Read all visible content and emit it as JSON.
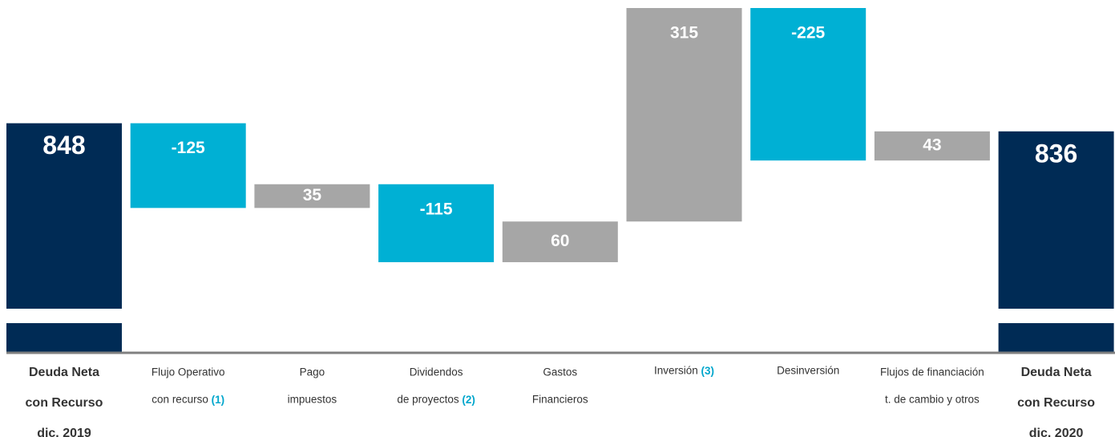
{
  "chart_data": {
    "type": "waterfall",
    "categories": [
      [
        "Deuda Neta",
        "con Recurso",
        "dic. 2019"
      ],
      [
        "Flujo Operativo",
        "con recurso"
      ],
      [
        "Pago",
        "impuestos"
      ],
      [
        "Dividendos",
        "de proyectos"
      ],
      [
        "Gastos",
        "Financieros"
      ],
      [
        "Inversión"
      ],
      [
        "Desinversión"
      ],
      [
        "Flujos de financiación",
        "t. de cambio y otros"
      ],
      [
        "Deuda Neta",
        "con Recurso",
        "dic. 2020"
      ]
    ],
    "footnotes": [
      null,
      "(1)",
      null,
      "(2)",
      null,
      "(3)",
      null,
      null,
      null
    ],
    "values": [
      848,
      -125,
      35,
      -115,
      60,
      315,
      -225,
      43,
      836
    ],
    "measure": [
      "total",
      "relative",
      "relative",
      "relative",
      "relative",
      "relative",
      "relative",
      "relative",
      "total"
    ],
    "colors": {
      "total": "#002b55",
      "decrease": "#00b0d4",
      "increase": "#a6a6a6",
      "footnote": "#00a6cc"
    },
    "axis_break": true
  }
}
